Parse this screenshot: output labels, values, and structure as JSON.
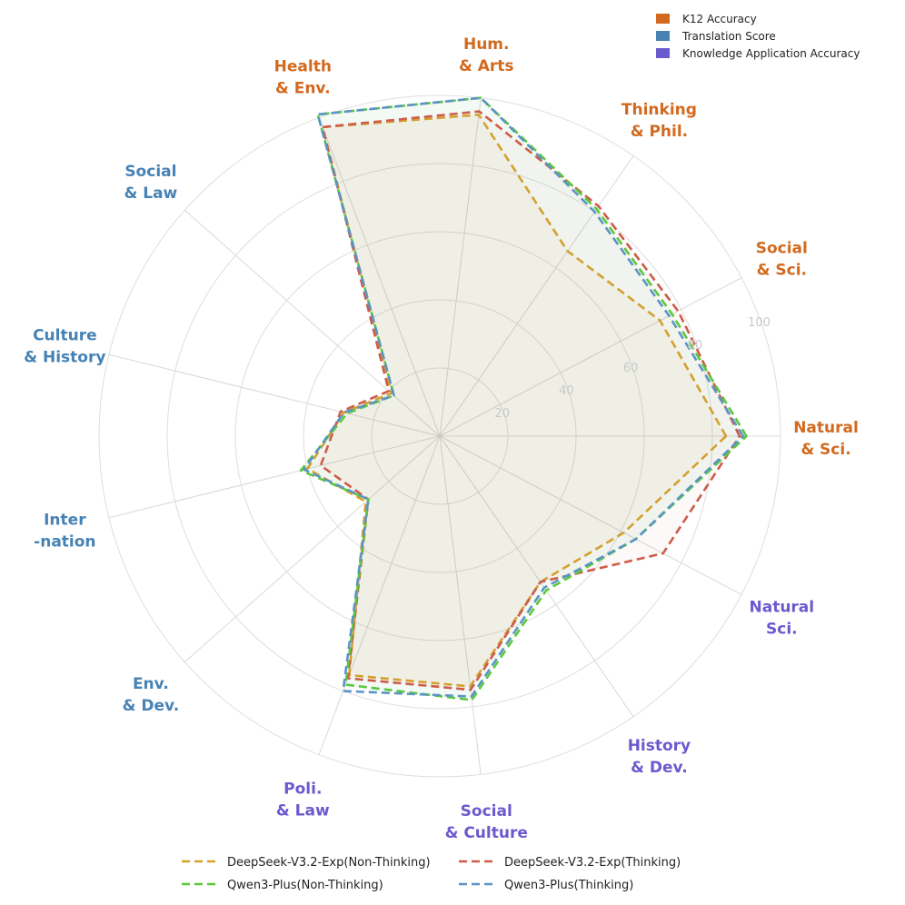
{
  "chart_data": {
    "type": "radar",
    "title": "",
    "rmax": 100,
    "ticks": [
      20,
      40,
      60,
      80,
      100
    ],
    "tick_labels": [
      "20",
      "40",
      "60",
      "80",
      "100"
    ],
    "groups": [
      {
        "name": "K12 Accuracy",
        "color": "#d2691e"
      },
      {
        "name": "Translation Score",
        "color": "#4682b4"
      },
      {
        "name": "Knowledge Application Accuracy",
        "color": "#6a5acd"
      }
    ],
    "categories": [
      {
        "label": [
          "Natural",
          "& Sci."
        ],
        "group": 0
      },
      {
        "label": [
          "Social",
          "& Sci."
        ],
        "group": 0
      },
      {
        "label": [
          "Thinking",
          "& Phil."
        ],
        "group": 0
      },
      {
        "label": [
          "Hum.",
          "& Arts"
        ],
        "group": 0
      },
      {
        "label": [
          "Health",
          "& Env."
        ],
        "group": 0
      },
      {
        "label": [
          "Social",
          "& Law"
        ],
        "group": 1
      },
      {
        "label": [
          "Culture",
          "& History"
        ],
        "group": 1
      },
      {
        "label": [
          "Inter",
          "-nation"
        ],
        "group": 1
      },
      {
        "label": [
          "Env.",
          "& Dev."
        ],
        "group": 1
      },
      {
        "label": [
          "Poli.",
          "& Law"
        ],
        "group": 2
      },
      {
        "label": [
          "Social",
          "& Culture"
        ],
        "group": 2
      },
      {
        "label": [
          "History",
          "& Dev."
        ],
        "group": 2
      },
      {
        "label": [
          "Natural",
          "Sci."
        ],
        "group": 2
      }
    ],
    "series": [
      {
        "name": "DeepSeek-V3.2-Exp(Non-Thinking)",
        "color": "#d4a02e",
        "values": [
          84,
          73,
          66,
          95,
          97,
          19,
          29,
          40,
          29,
          75,
          74,
          52,
          61
        ]
      },
      {
        "name": "DeepSeek-V3.2-Exp(Thinking)",
        "color": "#cd5c4a",
        "values": [
          88,
          79,
          82,
          96,
          97,
          20,
          30,
          36,
          28,
          76,
          75,
          52,
          74
        ]
      },
      {
        "name": "Qwen3-Plus(Non-Thinking)",
        "color": "#5ac83c",
        "values": [
          90,
          77,
          81,
          100,
          101,
          18,
          28,
          42,
          28,
          78,
          78,
          55,
          65
        ]
      },
      {
        "name": "Qwen3-Plus(Thinking)",
        "color": "#5b94c4",
        "values": [
          89,
          76,
          80,
          100,
          101,
          18,
          29,
          41,
          28,
          80,
          77,
          54,
          65
        ]
      }
    ],
    "legend_position": "bottom",
    "group_legend_position": "top-right"
  }
}
